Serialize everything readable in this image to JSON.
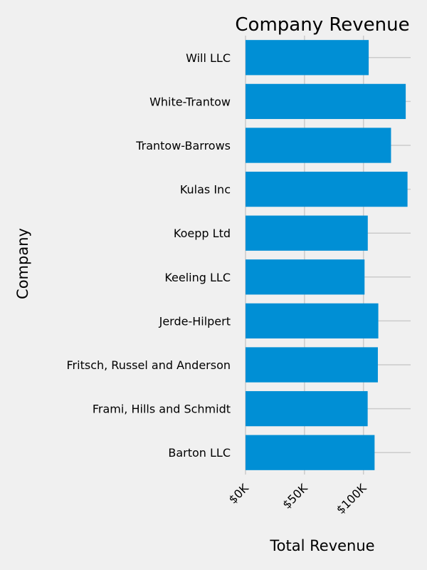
{
  "chart_data": {
    "type": "bar",
    "orientation": "horizontal",
    "title": "Company Revenue",
    "xlabel": "Total Revenue",
    "ylabel": "Company",
    "categories": [
      "Barton LLC",
      "Frami, Hills and Schmidt",
      "Fritsch, Russel and Anderson",
      "Jerde-Hilpert",
      "Keeling LLC",
      "Koepp Ltd",
      "Kulas Inc",
      "Trantow-Barrows",
      "White-Trantow",
      "Will LLC"
    ],
    "values": [
      109438,
      103569,
      112214,
      112591,
      100934,
      103660,
      137351,
      123381,
      135841,
      104437
    ],
    "xlim": [
      0,
      140000
    ],
    "xticks": [
      0,
      50000,
      100000
    ],
    "xtick_labels": [
      "$0K",
      "$50K",
      "$100K"
    ],
    "grid": true,
    "bar_color": "#008fd5",
    "background_color": "#f0f0f0"
  }
}
